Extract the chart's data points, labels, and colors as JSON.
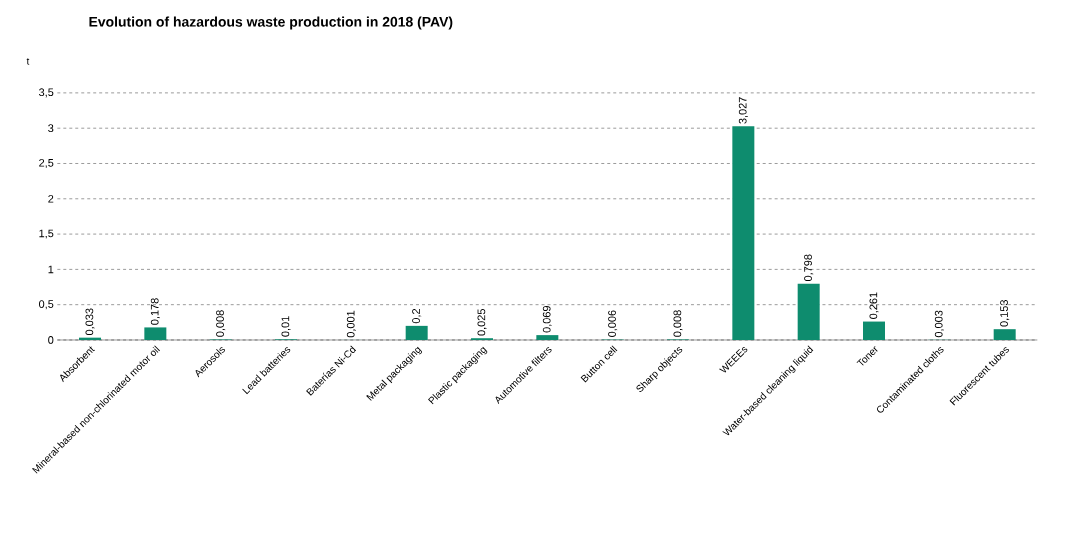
{
  "chart_data": {
    "type": "bar",
    "title": "Evolution of hazardous waste production in 2018 (PAV)",
    "ylabel": "t",
    "categories": [
      "Absorbent",
      "Mineral-based non-chlorinated motor oil",
      "Aerosols",
      "Lead batteries",
      "Baterías Ni-Cd",
      "Metal packaging",
      "Plastic packaging",
      "Automotive filters",
      "Button cell",
      "Sharp objects",
      "WEEEs",
      "Water-based cleaning liquid",
      "Toner",
      "Contaminated cloths",
      "Fluorescent tubes"
    ],
    "values": [
      0.033,
      0.178,
      0.008,
      0.01,
      0.001,
      0.2,
      0.025,
      0.069,
      0.006,
      0.008,
      3.027,
      0.798,
      0.261,
      0.003,
      0.153
    ],
    "value_labels": [
      "0,033",
      "0,178",
      "0,008",
      "0,01",
      "0,001",
      "0,2",
      "0,025",
      "0,069",
      "0,006",
      "0,008",
      "3,027",
      "0,798",
      "0,261",
      "0,003",
      "0,153"
    ],
    "color": "#0e8c6e",
    "ylim": [
      0,
      3.5
    ],
    "yticks": [
      0,
      {
        "value": 0.5,
        "label": "0,5"
      },
      1,
      {
        "value": 1.5,
        "label": "1,5"
      },
      2,
      {
        "value": 2.5,
        "label": "2,5"
      },
      3,
      {
        "value": 3.5,
        "label": "3,5"
      }
    ],
    "grid": "y"
  }
}
